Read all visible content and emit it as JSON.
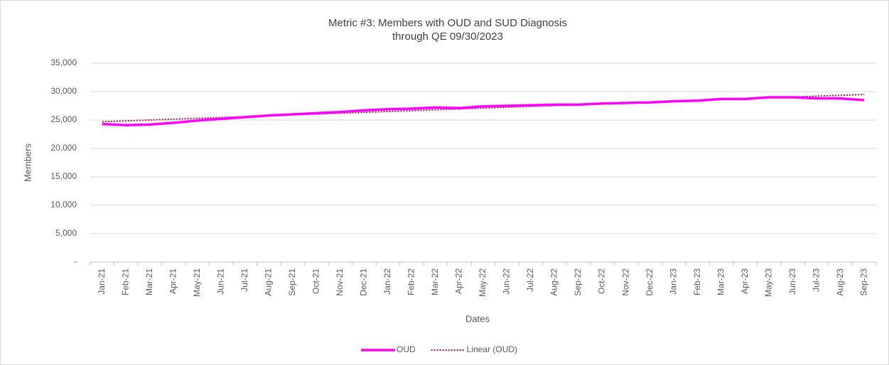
{
  "chart_data": {
    "type": "line",
    "title": "Metric #3: Members with OUD and SUD Diagnosis",
    "subtitle": "through QE 09/30/2023",
    "x_label": "Dates",
    "y_label": "Members",
    "categories": [
      "Jan-21",
      "Feb-21",
      "Mar-21",
      "Apr-21",
      "May-21",
      "Jun-21",
      "Jul-21",
      "Aug-21",
      "Sep-21",
      "Oct-21",
      "Nov-21",
      "Dec-21",
      "Jan-22",
      "Feb-22",
      "Mar-22",
      "Apr-22",
      "May-22",
      "Jun-22",
      "Jul-22",
      "Aug-22",
      "Sep-22",
      "Oct-22",
      "Nov-22",
      "Dec-22",
      "Jan-23",
      "Feb-23",
      "Mar-23",
      "Apr-23",
      "May-23",
      "Jun-23",
      "Jul-23",
      "Aug-23",
      "Sep-23"
    ],
    "series": [
      {
        "name": "OUD",
        "color": "#ff00ff",
        "style": "solid",
        "values": [
          24300,
          24100,
          24200,
          24500,
          24900,
          25200,
          25500,
          25800,
          26000,
          26200,
          26400,
          26700,
          26900,
          27000,
          27200,
          27100,
          27400,
          27500,
          27600,
          27700,
          27700,
          27900,
          28000,
          28100,
          28300,
          28400,
          28700,
          28700,
          29000,
          29000,
          28800,
          28800,
          28500
        ]
      },
      {
        "name": "Linear (OUD)",
        "color": "#a3174f",
        "style": "dotted",
        "values": [
          24700,
          24850,
          25000,
          25150,
          25300,
          25450,
          25600,
          25750,
          25900,
          26050,
          26200,
          26350,
          26500,
          26650,
          26800,
          26950,
          27100,
          27250,
          27400,
          27550,
          27700,
          27850,
          28000,
          28150,
          28300,
          28450,
          28600,
          28750,
          28900,
          29050,
          29200,
          29350,
          29500
        ]
      }
    ],
    "ylim": [
      0,
      35000
    ],
    "yticks": [
      {
        "value": 0,
        "label": "-"
      },
      {
        "value": 5000,
        "label": "5,000"
      },
      {
        "value": 10000,
        "label": "10,000"
      },
      {
        "value": 15000,
        "label": "15,000"
      },
      {
        "value": 20000,
        "label": "20,000"
      },
      {
        "value": 25000,
        "label": "25,000"
      },
      {
        "value": 30000,
        "label": "30,000"
      },
      {
        "value": 35000,
        "label": "35,000"
      }
    ],
    "grid": true,
    "legend": "bottom"
  }
}
